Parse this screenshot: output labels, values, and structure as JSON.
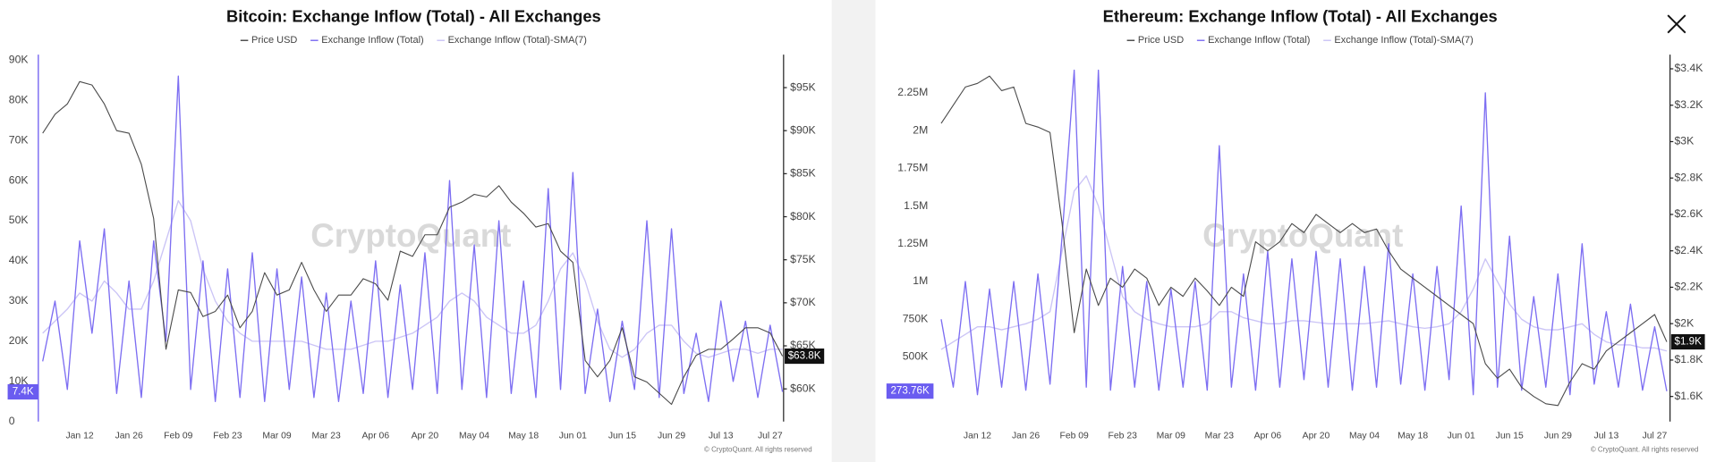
{
  "chart_data": [
    {
      "type": "line",
      "title": "Bitcoin: Exchange Inflow (Total) - All Exchanges",
      "watermark": "CryptoQuant",
      "footer": "© CryptoQuant. All rights reserved",
      "grid": false,
      "categories": [
        null,
        null,
        null,
        "Jan 12",
        null,
        null,
        null,
        "Jan 26",
        null,
        null,
        null,
        "Feb 09",
        null,
        null,
        null,
        "Feb 23",
        null,
        null,
        null,
        "Mar 09",
        null,
        null,
        null,
        "Mar 23",
        null,
        null,
        null,
        "Apr 06",
        null,
        null,
        null,
        "Apr 20",
        null,
        null,
        null,
        "May 04",
        null,
        null,
        null,
        "May 18",
        null,
        null,
        null,
        "Jun 01",
        null,
        null,
        null,
        "Jun 15",
        null,
        null,
        null,
        "Jun 29",
        null,
        null,
        null,
        "Jul 13",
        null,
        null,
        null,
        "Jul 27",
        null
      ],
      "ylim": [
        0,
        90000
      ],
      "yticks": [
        0,
        {
          "value": 10000,
          "label": "10K"
        },
        {
          "value": 20000,
          "label": "20K"
        },
        {
          "value": 30000,
          "label": "30K"
        },
        {
          "value": 40000,
          "label": "40K"
        },
        {
          "value": 50000,
          "label": "50K"
        },
        {
          "value": 60000,
          "label": "60K"
        },
        {
          "value": 70000,
          "label": "70K"
        },
        {
          "value": 80000,
          "label": "80K"
        },
        {
          "value": 90000,
          "label": "90K"
        }
      ],
      "y2lim": [
        56200,
        98200
      ],
      "y2ticks": [
        {
          "value": 60000,
          "label": "$60K"
        },
        {
          "value": 65000,
          "label": "$65K"
        },
        {
          "value": 70000,
          "label": "$70K"
        },
        {
          "value": 75000,
          "label": "$75K"
        },
        {
          "value": 80000,
          "label": "$80K"
        },
        {
          "value": 85000,
          "label": "$85K"
        },
        {
          "value": 90000,
          "label": "$90K"
        },
        {
          "value": 95000,
          "label": "$95K"
        }
      ],
      "series": [
        {
          "name": "Price USD",
          "color": "#4a4a4a",
          "axis": "y2",
          "values": [
            89700,
            91900,
            93100,
            95700,
            95300,
            93100,
            90000,
            89700,
            86100,
            79800,
            64600,
            71500,
            71200,
            68400,
            69000,
            70900,
            67100,
            69000,
            73500,
            70900,
            71500,
            74700,
            71500,
            69000,
            70900,
            70900,
            72800,
            72200,
            70300,
            76000,
            75400,
            77900,
            77900,
            81100,
            81700,
            82600,
            82300,
            83600,
            81700,
            80400,
            78800,
            79200,
            76000,
            74700,
            63300,
            61400,
            63300,
            67100,
            61400,
            60800,
            59500,
            58200,
            61400,
            63900,
            64600,
            64600,
            65800,
            67100,
            67100,
            66500,
            63800
          ]
        },
        {
          "name": "Exchange Inflow (Total)",
          "color": "#7d6ef2",
          "axis": "y",
          "values": [
            15000,
            30000,
            8000,
            45000,
            22000,
            48000,
            7000,
            35000,
            6000,
            45000,
            20000,
            86000,
            8000,
            40000,
            5000,
            38000,
            6000,
            42000,
            5000,
            38000,
            8000,
            36000,
            6000,
            32000,
            5000,
            30000,
            7000,
            40000,
            6000,
            34000,
            8000,
            42000,
            7000,
            60000,
            8000,
            44000,
            6000,
            50000,
            7000,
            35000,
            6000,
            58000,
            8000,
            62000,
            7000,
            28000,
            5000,
            25000,
            8000,
            50000,
            6000,
            48000,
            7000,
            22000,
            5000,
            30000,
            10000,
            25000,
            6000,
            24000,
            7400
          ]
        },
        {
          "name": "Exchange Inflow (Total)-SMA(7)",
          "color": "#cbc4f6",
          "axis": "y",
          "values": [
            22000,
            25000,
            28000,
            32000,
            30000,
            35000,
            32000,
            28000,
            28000,
            35000,
            45000,
            55000,
            50000,
            38000,
            30000,
            25000,
            22000,
            20000,
            20000,
            20000,
            20000,
            20000,
            19000,
            18000,
            18000,
            18000,
            19000,
            20000,
            20000,
            21000,
            22000,
            24000,
            26000,
            30000,
            32000,
            30000,
            26000,
            24000,
            22000,
            22000,
            24000,
            30000,
            38000,
            42000,
            35000,
            25000,
            18000,
            16000,
            18000,
            22000,
            24000,
            24000,
            20000,
            17000,
            16000,
            17000,
            18000,
            18000,
            17000,
            18000,
            18000
          ]
        }
      ],
      "value_markers": [
        {
          "value": 7400,
          "label": "7.4K",
          "axis": "y",
          "color": "#6a5cf0"
        },
        {
          "value": 63800,
          "label": "$63.8K",
          "axis": "y2",
          "color": "#111111"
        }
      ]
    },
    {
      "type": "line",
      "title": "Ethereum: Exchange Inflow (Total) - All Exchanges",
      "watermark": "CryptoQuant",
      "footer": "© CryptoQuant. All rights reserved",
      "grid": false,
      "categories": [
        null,
        null,
        null,
        "Jan 12",
        null,
        null,
        null,
        "Jan 26",
        null,
        null,
        null,
        "Feb 09",
        null,
        null,
        null,
        "Feb 23",
        null,
        null,
        null,
        "Mar 09",
        null,
        null,
        null,
        "Mar 23",
        null,
        null,
        null,
        "Apr 06",
        null,
        null,
        null,
        "Apr 20",
        null,
        null,
        null,
        "May 04",
        null,
        null,
        null,
        "May 18",
        null,
        null,
        null,
        "Jun 01",
        null,
        null,
        null,
        "Jun 15",
        null,
        null,
        null,
        "Jun 29",
        null,
        null,
        null,
        "Jul 13",
        null,
        null,
        null,
        "Jul 27",
        null
      ],
      "ylim": [
        72000,
        2467000
      ],
      "yticks": [
        {
          "value": 500000,
          "label": "500K"
        },
        {
          "value": 750000,
          "label": "750K"
        },
        {
          "value": 1000000,
          "label": "1M"
        },
        {
          "value": 1250000,
          "label": "1.25M"
        },
        {
          "value": 1500000,
          "label": "1.5M"
        },
        {
          "value": 1750000,
          "label": "1.75M"
        },
        {
          "value": 2000000,
          "label": "2M"
        },
        {
          "value": 2250000,
          "label": "2.25M"
        }
      ],
      "y2lim": [
        1462,
        3448
      ],
      "y2ticks": [
        {
          "value": 1600,
          "label": "$1.6K"
        },
        {
          "value": 1800,
          "label": "$1.8K"
        },
        {
          "value": 2000,
          "label": "$2K"
        },
        {
          "value": 2200,
          "label": "$2.2K"
        },
        {
          "value": 2400,
          "label": "$2.4K"
        },
        {
          "value": 2600,
          "label": "$2.6K"
        },
        {
          "value": 2800,
          "label": "$2.8K"
        },
        {
          "value": 3000,
          "label": "$3K"
        },
        {
          "value": 3200,
          "label": "$3.2K"
        },
        {
          "value": 3400,
          "label": "$3.4K"
        }
      ],
      "series": [
        {
          "name": "Price USD",
          "color": "#4a4a4a",
          "axis": "y2",
          "values": [
            3100,
            3200,
            3300,
            3320,
            3360,
            3280,
            3300,
            3100,
            3080,
            3050,
            2550,
            1950,
            2300,
            2100,
            2250,
            2200,
            2300,
            2250,
            2100,
            2200,
            2150,
            2250,
            2180,
            2100,
            2200,
            2150,
            2450,
            2400,
            2450,
            2550,
            2500,
            2600,
            2550,
            2500,
            2550,
            2500,
            2520,
            2400,
            2300,
            2250,
            2200,
            2150,
            2100,
            2050,
            2000,
            1780,
            1700,
            1750,
            1650,
            1600,
            1560,
            1550,
            1680,
            1780,
            1750,
            1850,
            1900,
            1950,
            2000,
            2050,
            1900
          ]
        },
        {
          "name": "Exchange Inflow (Total)",
          "color": "#7d6ef2",
          "axis": "y",
          "values": [
            750000,
            300000,
            1000000,
            250000,
            950000,
            300000,
            1000000,
            280000,
            1050000,
            320000,
            1300000,
            2400000,
            300000,
            2400000,
            280000,
            1100000,
            300000,
            1000000,
            280000,
            950000,
            300000,
            1000000,
            280000,
            1900000,
            300000,
            1050000,
            280000,
            1200000,
            300000,
            1150000,
            350000,
            1200000,
            300000,
            1150000,
            280000,
            1100000,
            300000,
            1250000,
            320000,
            1050000,
            280000,
            1100000,
            350000,
            1500000,
            250000,
            2250000,
            300000,
            1300000,
            280000,
            900000,
            300000,
            1050000,
            250000,
            1250000,
            320000,
            800000,
            300000,
            850000,
            280000,
            700000,
            273760
          ]
        },
        {
          "name": "Exchange Inflow (Total)-SMA(7)",
          "color": "#cbc4f6",
          "axis": "y",
          "values": [
            550000,
            600000,
            650000,
            700000,
            700000,
            680000,
            700000,
            720000,
            750000,
            800000,
            1200000,
            1600000,
            1700000,
            1500000,
            1200000,
            900000,
            800000,
            750000,
            720000,
            700000,
            700000,
            700000,
            720000,
            800000,
            800000,
            760000,
            740000,
            720000,
            720000,
            740000,
            740000,
            730000,
            720000,
            720000,
            720000,
            720000,
            730000,
            740000,
            720000,
            700000,
            690000,
            700000,
            720000,
            800000,
            950000,
            1150000,
            1000000,
            850000,
            750000,
            700000,
            680000,
            680000,
            700000,
            720000,
            650000,
            600000,
            580000,
            580000,
            560000,
            560000,
            540000
          ]
        }
      ],
      "value_markers": [
        {
          "value": 273760,
          "label": "273.76K",
          "axis": "y",
          "color": "#6a5cf0"
        },
        {
          "value": 1900,
          "label": "$1.9K",
          "axis": "y2",
          "color": "#111111"
        }
      ]
    }
  ]
}
